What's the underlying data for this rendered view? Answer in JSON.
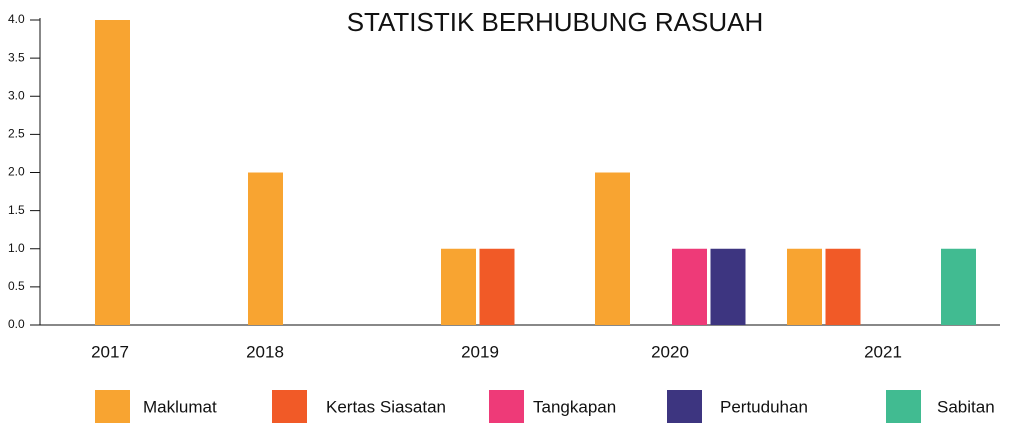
{
  "chart_data": {
    "type": "bar",
    "title": "STATISTIK BERHUBUNG RASUAH",
    "categories": [
      "2017",
      "2018",
      "2019",
      "2020",
      "2021"
    ],
    "series": [
      {
        "name": "Maklumat",
        "color": "#f8a431",
        "values": [
          4,
          2,
          1,
          2,
          1
        ]
      },
      {
        "name": "Kertas Siasatan",
        "color": "#f15a27",
        "values": [
          0,
          0,
          1,
          0,
          1
        ]
      },
      {
        "name": "Tangkapan",
        "color": "#ee3a78",
        "values": [
          0,
          0,
          0,
          1,
          0
        ]
      },
      {
        "name": "Pertuduhan",
        "color": "#3d3580",
        "values": [
          0,
          0,
          0,
          1,
          0
        ]
      },
      {
        "name": "Sabitan",
        "color": "#41bb91",
        "values": [
          0,
          0,
          0,
          0,
          1
        ]
      }
    ],
    "ylim": [
      0,
      4
    ],
    "yticks": [
      {
        "value": 0,
        "label": "0.0"
      },
      0.5,
      {
        "value": 1,
        "label": "1.0"
      },
      1.5,
      {
        "value": 2,
        "label": "2.0"
      },
      2.5,
      {
        "value": 3,
        "label": "3.0"
      },
      3.5,
      {
        "value": 4,
        "label": "4.0"
      }
    ],
    "legend": "bottom"
  }
}
